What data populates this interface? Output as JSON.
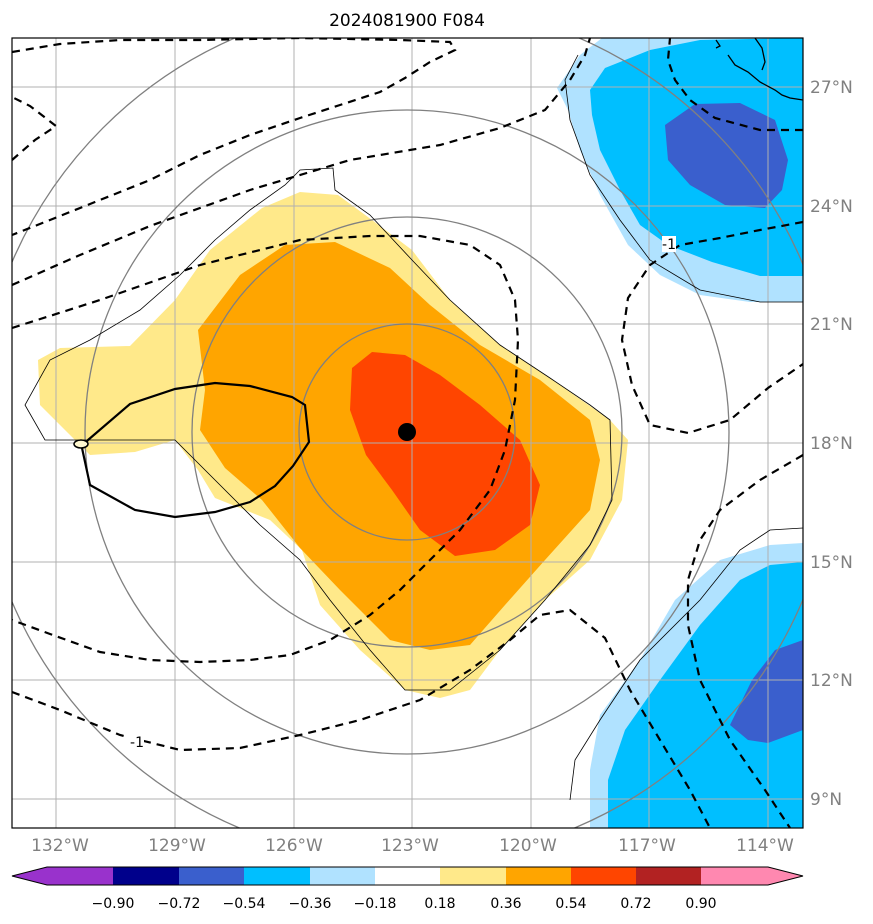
{
  "title": "2024081900 F084",
  "map": {
    "lat_labels": [
      "27°N",
      "24°N",
      "21°N",
      "18°N",
      "15°N",
      "12°N",
      "9°N"
    ],
    "lon_labels": [
      "132°W",
      "129°W",
      "126°W",
      "123°W",
      "120°W",
      "117°W",
      "114°W"
    ],
    "center_marker": {
      "lon": -123.0,
      "lat": 18.3
    },
    "contour_labels": [
      "-1",
      "-1"
    ]
  },
  "colorbar": {
    "ticks": [
      "−0.90",
      "−0.72",
      "−0.54",
      "−0.36",
      "−0.18",
      "0.18",
      "0.36",
      "0.54",
      "0.72",
      "0.90"
    ],
    "colors": [
      "#9932cc",
      "#00008b",
      "#3a5fcd",
      "#00bfff",
      "#b0e2ff",
      "#ffffff",
      "#ffe98a",
      "#ffa500",
      "#ff4500",
      "#b22222",
      "#ff88b0"
    ],
    "extend": "both"
  }
}
